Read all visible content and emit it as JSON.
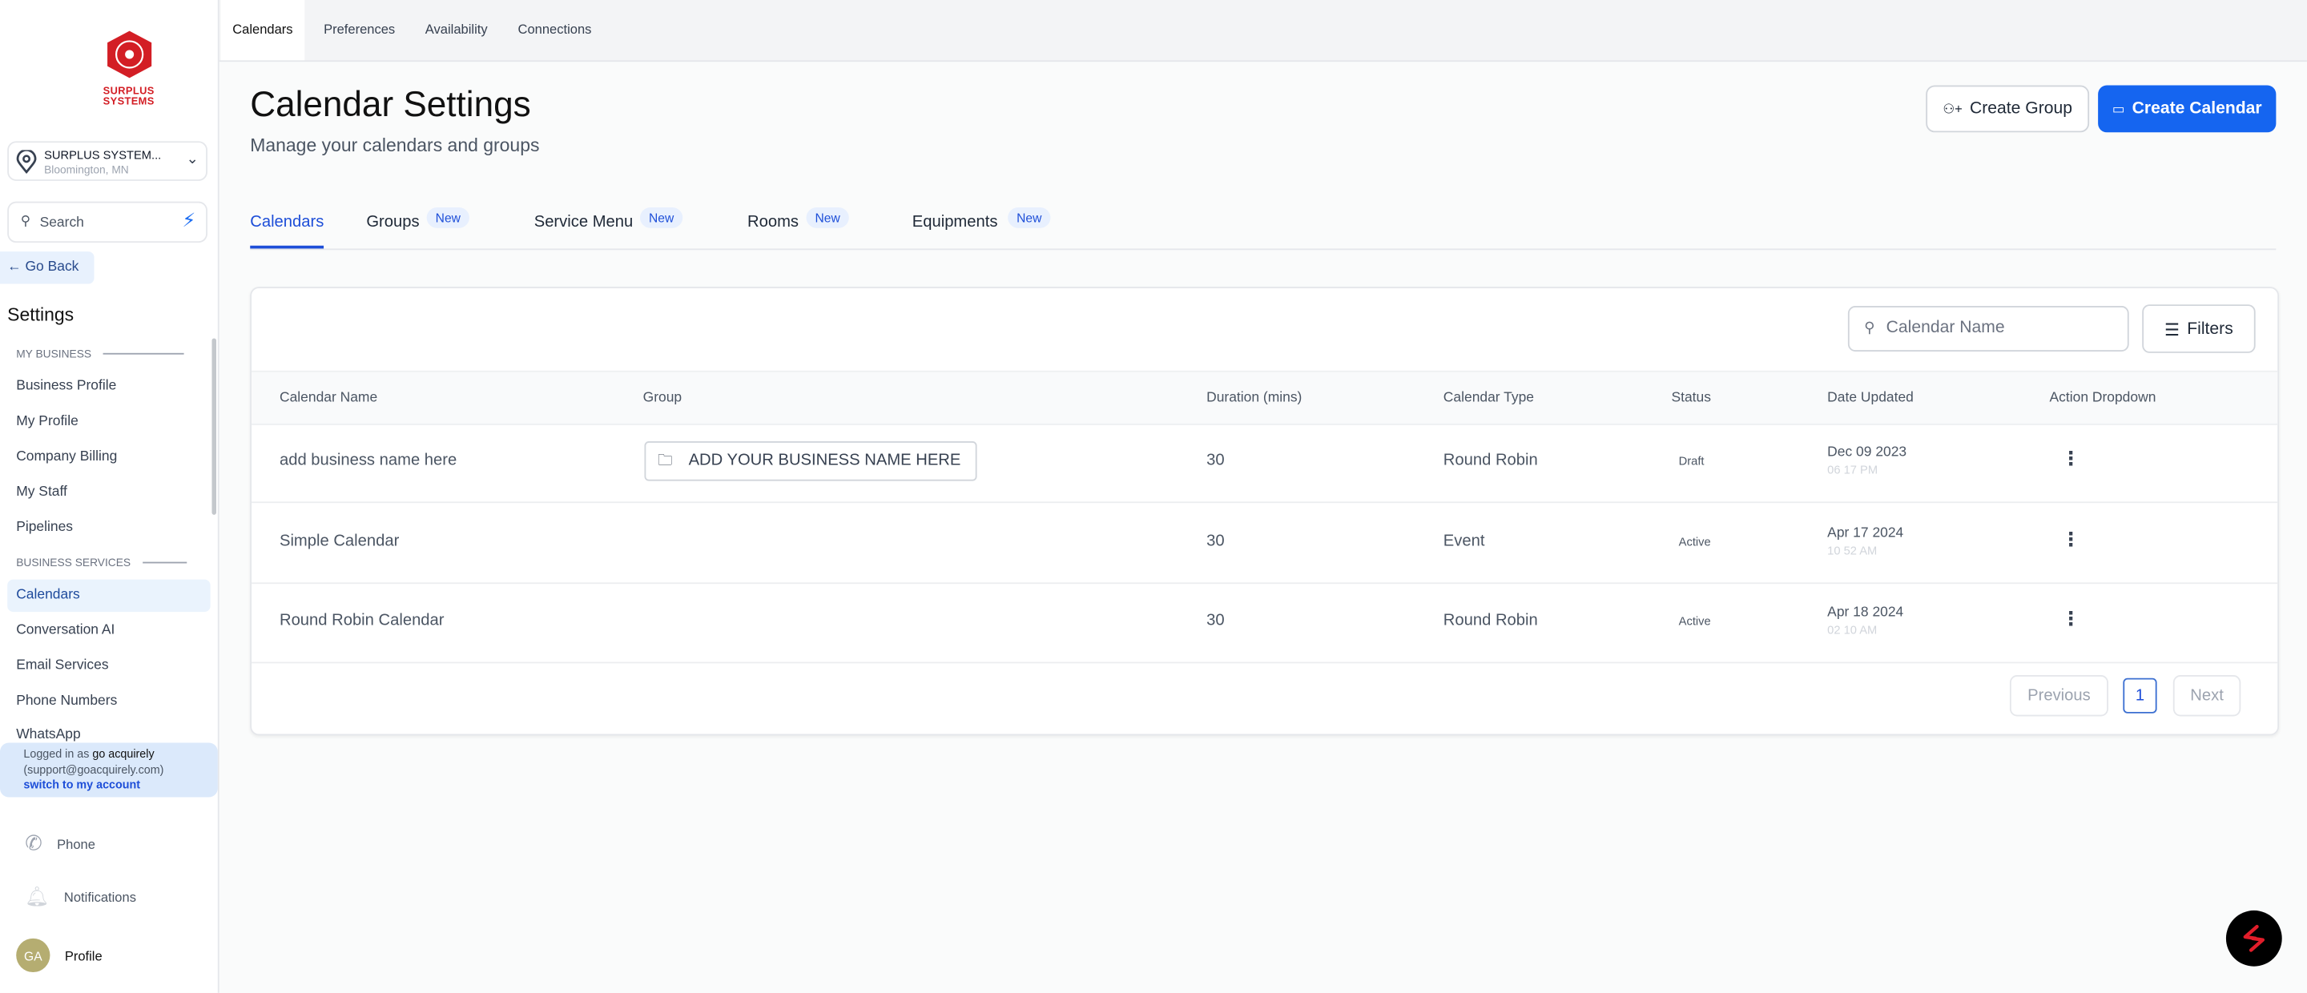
{
  "brand": {
    "name": "SURPLUS SYSTEMS",
    "logo_color": "#d31e25"
  },
  "location": {
    "name": "SURPLUS SYSTEM...",
    "city": "Bloomington, MN"
  },
  "search": {
    "placeholder": "Search"
  },
  "go_back": "Go Back",
  "sidebar": {
    "heading": "Settings",
    "sections": [
      {
        "title": "MY BUSINESS",
        "items": [
          "Business Profile",
          "My Profile",
          "Company Billing",
          "My Staff",
          "Pipelines"
        ]
      },
      {
        "title": "BUSINESS SERVICES",
        "items": [
          "Calendars",
          "Conversation AI",
          "Email Services",
          "Phone Numbers",
          "WhatsApp"
        ]
      }
    ],
    "active": "Calendars",
    "logged_in": {
      "prefix": "Logged in as",
      "user": "go acquirely",
      "email": "(support@goacquirely.com)",
      "switch": "switch to my account"
    },
    "bottom": {
      "phone": "Phone",
      "notifications": "Notifications",
      "profile": "Profile",
      "avatar_initials": "GA"
    }
  },
  "top_tabs": [
    "Calendars",
    "Preferences",
    "Availability",
    "Connections"
  ],
  "page": {
    "title": "Calendar Settings",
    "subtitle": "Manage your calendars and groups",
    "create_group": "Create Group",
    "create_calendar": "Create Calendar",
    "accent": "#1565f0"
  },
  "tabs": [
    {
      "label": "Calendars",
      "badge": ""
    },
    {
      "label": "Groups",
      "badge": "New"
    },
    {
      "label": "Service Menu",
      "badge": "New"
    },
    {
      "label": "Rooms",
      "badge": "New"
    },
    {
      "label": "Equipments",
      "badge": "New"
    }
  ],
  "table": {
    "search_placeholder": "Calendar Name",
    "filters": "Filters",
    "columns": [
      "Calendar Name",
      "Group",
      "Duration (mins)",
      "Calendar Type",
      "Status",
      "Date Updated",
      "Action Dropdown"
    ],
    "rows": [
      {
        "name": "add business name here",
        "group": "ADD YOUR BUSINESS NAME HERE",
        "duration": "30",
        "type": "Round Robin",
        "status": "Draft",
        "date": "Dec 09 2023",
        "time": "06 17 PM"
      },
      {
        "name": "Simple Calendar",
        "group": "",
        "duration": "30",
        "type": "Event",
        "status": "Active",
        "date": "Apr 17 2024",
        "time": "10 52 AM"
      },
      {
        "name": "Round Robin Calendar",
        "group": "",
        "duration": "30",
        "type": "Round Robin",
        "status": "Active",
        "date": "Apr 18 2024",
        "time": "02 10 AM"
      }
    ],
    "pagination": {
      "previous": "Previous",
      "page": "1",
      "next": "Next"
    }
  }
}
